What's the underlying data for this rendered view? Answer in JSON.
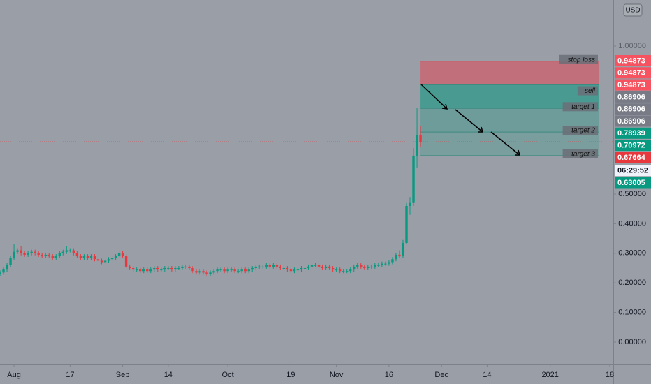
{
  "chart_data": {
    "type": "candlestick",
    "currency": "USD",
    "countdown": "06:29:52",
    "x": [
      "Jul 28",
      "Jul 29",
      "Jul 30",
      "Jul 31",
      "Aug 1",
      "Aug 2",
      "Aug 3",
      "Aug 4",
      "Aug 5",
      "Aug 6",
      "Aug 7",
      "Aug 8",
      "Aug 9",
      "Aug 10",
      "Aug 11",
      "Aug 12",
      "Aug 13",
      "Aug 14",
      "Aug 15",
      "Aug 16",
      "Aug 17",
      "Aug 18",
      "Aug 19",
      "Aug 20",
      "Aug 21",
      "Aug 22",
      "Aug 23",
      "Aug 24",
      "Aug 25",
      "Aug 26",
      "Aug 27",
      "Aug 28",
      "Aug 29",
      "Aug 30",
      "Aug 31",
      "Sep 1",
      "Sep 2",
      "Sep 3",
      "Sep 4",
      "Sep 5",
      "Sep 6",
      "Sep 7",
      "Sep 8",
      "Sep 9",
      "Sep 10",
      "Sep 11",
      "Sep 12",
      "Sep 13",
      "Sep 14",
      "Sep 15",
      "Sep 16",
      "Sep 17",
      "Sep 18",
      "Sep 19",
      "Sep 20",
      "Sep 21",
      "Sep 22",
      "Sep 23",
      "Sep 24",
      "Sep 25",
      "Sep 26",
      "Sep 27",
      "Sep 28",
      "Sep 29",
      "Sep 30",
      "Oct 1",
      "Oct 2",
      "Oct 3",
      "Oct 4",
      "Oct 5",
      "Oct 6",
      "Oct 7",
      "Oct 8",
      "Oct 9",
      "Oct 10",
      "Oct 11",
      "Oct 12",
      "Oct 13",
      "Oct 14",
      "Oct 15",
      "Oct 16",
      "Oct 17",
      "Oct 18",
      "Oct 19",
      "Oct 20",
      "Oct 21",
      "Oct 22",
      "Oct 23",
      "Oct 24",
      "Oct 25",
      "Oct 26",
      "Oct 27",
      "Oct 28",
      "Oct 29",
      "Oct 30",
      "Oct 31",
      "Nov 1",
      "Nov 2",
      "Nov 3",
      "Nov 4",
      "Nov 5",
      "Nov 6",
      "Nov 7",
      "Nov 8",
      "Nov 9",
      "Nov 10",
      "Nov 11",
      "Nov 12",
      "Nov 13",
      "Nov 14",
      "Nov 15",
      "Nov 16",
      "Nov 17",
      "Nov 18",
      "Nov 19",
      "Nov 20",
      "Nov 21",
      "Nov 22",
      "Nov 23",
      "Nov 24",
      "Nov 25"
    ],
    "open": [
      0.23,
      0.235,
      0.245,
      0.26,
      0.285,
      0.305,
      0.31,
      0.3,
      0.295,
      0.3,
      0.305,
      0.3,
      0.295,
      0.29,
      0.295,
      0.29,
      0.285,
      0.29,
      0.3,
      0.305,
      0.31,
      0.31,
      0.3,
      0.29,
      0.285,
      0.29,
      0.285,
      0.29,
      0.28,
      0.275,
      0.27,
      0.275,
      0.28,
      0.285,
      0.29,
      0.3,
      0.29,
      0.255,
      0.25,
      0.245,
      0.245,
      0.24,
      0.245,
      0.24,
      0.245,
      0.25,
      0.245,
      0.245,
      0.25,
      0.25,
      0.245,
      0.25,
      0.25,
      0.255,
      0.255,
      0.25,
      0.24,
      0.235,
      0.24,
      0.235,
      0.23,
      0.235,
      0.24,
      0.245,
      0.245,
      0.24,
      0.245,
      0.245,
      0.24,
      0.24,
      0.245,
      0.24,
      0.245,
      0.25,
      0.255,
      0.255,
      0.255,
      0.26,
      0.255,
      0.26,
      0.255,
      0.25,
      0.25,
      0.245,
      0.24,
      0.245,
      0.245,
      0.25,
      0.25,
      0.255,
      0.26,
      0.26,
      0.255,
      0.25,
      0.255,
      0.25,
      0.245,
      0.245,
      0.24,
      0.24,
      0.24,
      0.245,
      0.255,
      0.26,
      0.255,
      0.25,
      0.255,
      0.255,
      0.26,
      0.26,
      0.265,
      0.265,
      0.27,
      0.28,
      0.295,
      0.29,
      0.335,
      0.46,
      0.47,
      0.63,
      0.7
    ],
    "high": [
      0.242,
      0.252,
      0.267,
      0.292,
      0.33,
      0.317,
      0.325,
      0.307,
      0.307,
      0.312,
      0.312,
      0.307,
      0.302,
      0.302,
      0.302,
      0.297,
      0.297,
      0.307,
      0.312,
      0.325,
      0.317,
      0.317,
      0.307,
      0.297,
      0.297,
      0.297,
      0.297,
      0.297,
      0.287,
      0.282,
      0.282,
      0.287,
      0.292,
      0.297,
      0.307,
      0.307,
      0.297,
      0.262,
      0.257,
      0.252,
      0.252,
      0.252,
      0.252,
      0.252,
      0.257,
      0.257,
      0.252,
      0.257,
      0.257,
      0.257,
      0.257,
      0.257,
      0.262,
      0.262,
      0.262,
      0.257,
      0.247,
      0.247,
      0.247,
      0.242,
      0.242,
      0.247,
      0.252,
      0.252,
      0.252,
      0.252,
      0.252,
      0.252,
      0.247,
      0.252,
      0.252,
      0.252,
      0.257,
      0.262,
      0.262,
      0.262,
      0.267,
      0.267,
      0.267,
      0.267,
      0.262,
      0.257,
      0.257,
      0.252,
      0.252,
      0.252,
      0.257,
      0.257,
      0.262,
      0.267,
      0.267,
      0.267,
      0.262,
      0.262,
      0.262,
      0.257,
      0.252,
      0.252,
      0.247,
      0.247,
      0.252,
      0.262,
      0.267,
      0.267,
      0.262,
      0.262,
      0.262,
      0.267,
      0.267,
      0.272,
      0.272,
      0.277,
      0.287,
      0.302,
      0.31,
      0.345,
      0.47,
      0.49,
      0.655,
      0.79,
      0.73
    ],
    "low": [
      0.223,
      0.228,
      0.238,
      0.253,
      0.278,
      0.298,
      0.293,
      0.288,
      0.288,
      0.293,
      0.293,
      0.288,
      0.283,
      0.283,
      0.283,
      0.278,
      0.278,
      0.283,
      0.293,
      0.298,
      0.303,
      0.293,
      0.283,
      0.278,
      0.278,
      0.278,
      0.278,
      0.273,
      0.268,
      0.263,
      0.263,
      0.268,
      0.273,
      0.278,
      0.283,
      0.283,
      0.248,
      0.243,
      0.238,
      0.238,
      0.233,
      0.233,
      0.233,
      0.233,
      0.238,
      0.238,
      0.238,
      0.238,
      0.243,
      0.238,
      0.238,
      0.243,
      0.243,
      0.248,
      0.243,
      0.233,
      0.228,
      0.228,
      0.228,
      0.223,
      0.223,
      0.228,
      0.233,
      0.238,
      0.233,
      0.233,
      0.238,
      0.233,
      0.233,
      0.233,
      0.233,
      0.233,
      0.238,
      0.243,
      0.248,
      0.248,
      0.248,
      0.248,
      0.248,
      0.248,
      0.243,
      0.243,
      0.238,
      0.233,
      0.233,
      0.238,
      0.238,
      0.243,
      0.243,
      0.248,
      0.253,
      0.248,
      0.243,
      0.243,
      0.243,
      0.238,
      0.238,
      0.233,
      0.233,
      0.233,
      0.233,
      0.238,
      0.248,
      0.248,
      0.243,
      0.243,
      0.248,
      0.248,
      0.253,
      0.253,
      0.258,
      0.258,
      0.263,
      0.273,
      0.283,
      0.283,
      0.33,
      0.43,
      0.46,
      0.59,
      0.66
    ],
    "close": [
      0.235,
      0.245,
      0.26,
      0.285,
      0.305,
      0.31,
      0.3,
      0.295,
      0.3,
      0.305,
      0.3,
      0.295,
      0.29,
      0.295,
      0.29,
      0.285,
      0.29,
      0.3,
      0.305,
      0.31,
      0.31,
      0.3,
      0.29,
      0.285,
      0.29,
      0.285,
      0.29,
      0.28,
      0.275,
      0.27,
      0.275,
      0.28,
      0.285,
      0.29,
      0.3,
      0.29,
      0.255,
      0.25,
      0.245,
      0.245,
      0.24,
      0.245,
      0.24,
      0.245,
      0.25,
      0.245,
      0.245,
      0.25,
      0.25,
      0.245,
      0.25,
      0.25,
      0.255,
      0.255,
      0.25,
      0.24,
      0.235,
      0.24,
      0.235,
      0.23,
      0.235,
      0.24,
      0.245,
      0.245,
      0.24,
      0.245,
      0.245,
      0.24,
      0.24,
      0.245,
      0.24,
      0.245,
      0.25,
      0.255,
      0.255,
      0.255,
      0.26,
      0.255,
      0.26,
      0.255,
      0.25,
      0.25,
      0.245,
      0.24,
      0.245,
      0.245,
      0.25,
      0.25,
      0.255,
      0.26,
      0.26,
      0.255,
      0.25,
      0.255,
      0.25,
      0.245,
      0.245,
      0.24,
      0.24,
      0.24,
      0.245,
      0.255,
      0.26,
      0.255,
      0.25,
      0.255,
      0.255,
      0.26,
      0.26,
      0.265,
      0.265,
      0.27,
      0.28,
      0.295,
      0.29,
      0.335,
      0.46,
      0.47,
      0.63,
      0.7,
      0.67664
    ],
    "up_color": "#089981",
    "down_color": "#e8383e",
    "xlim": [
      "Jul 28",
      "Jan 19"
    ],
    "xticks": [
      {
        "value": "Aug 1",
        "label": "Aug"
      },
      {
        "value": "Aug 17",
        "label": "17"
      },
      {
        "value": "Sep 1",
        "label": "Sep"
      },
      {
        "value": "Sep 14",
        "label": "14"
      },
      {
        "value": "Oct 1",
        "label": "Oct"
      },
      {
        "value": "Oct 19",
        "label": "19"
      },
      {
        "value": "Nov 1",
        "label": "Nov"
      },
      {
        "value": "Nov 16",
        "label": "16"
      },
      {
        "value": "Dec 1",
        "label": "Dec"
      },
      {
        "value": "Dec 14",
        "label": "14"
      },
      {
        "value": "Jan 1",
        "label": "2021"
      },
      {
        "value": "Jan 18",
        "label": "18"
      }
    ],
    "ylim": [
      -0.0755,
      1.1557
    ],
    "yticks": [
      {
        "value": 0,
        "label": "0.00000"
      },
      {
        "value": 0.1,
        "label": "0.10000"
      },
      {
        "value": 0.2,
        "label": "0.20000"
      },
      {
        "value": 0.3,
        "label": "0.30000"
      },
      {
        "value": 0.4,
        "label": "0.40000"
      },
      {
        "value": 0.5,
        "label": "0.50000"
      },
      {
        "value": 1,
        "label": "1.00000"
      }
    ],
    "levels": [
      {
        "name": "stop loss",
        "value": 0.94873
      },
      {
        "name": "sell",
        "value": 0.86906
      },
      {
        "name": "target 1",
        "value": 0.78939
      },
      {
        "name": "target 2",
        "value": 0.70972
      },
      {
        "name": "target 3",
        "value": 0.63005
      }
    ],
    "price_labels": [
      {
        "value": 0.94873,
        "color": "#f7525f"
      },
      {
        "value": 0.94873,
        "color": "#f7525f"
      },
      {
        "value": 0.94873,
        "color": "#f7525f"
      },
      {
        "value": 0.86906,
        "color": "#787b86"
      },
      {
        "value": 0.86906,
        "color": "#787b86"
      },
      {
        "value": 0.86906,
        "color": "#787b86"
      },
      {
        "value": 0.78939,
        "color": "#089981"
      },
      {
        "value": 0.70972,
        "color": "#089981"
      },
      {
        "value": 0.63005,
        "color": "#089981"
      }
    ]
  }
}
